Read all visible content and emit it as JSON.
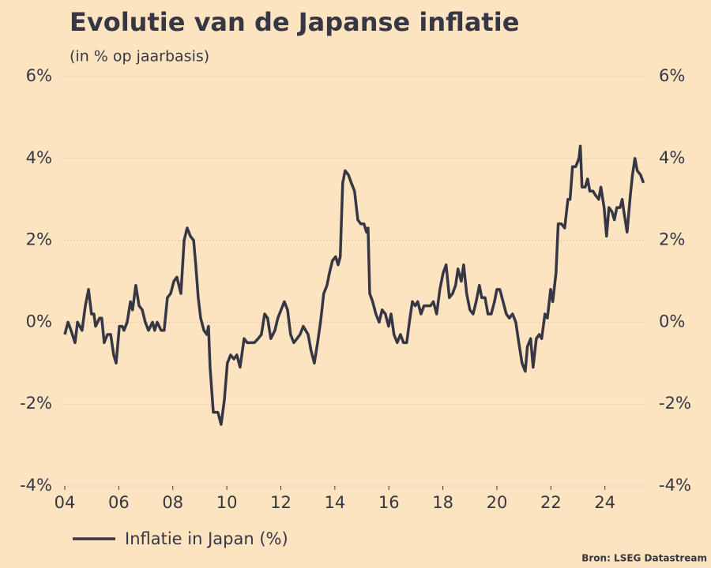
{
  "chart_data": {
    "type": "line",
    "title": "Evolutie van de Japanse inflatie",
    "subtitle": "(in % op jaarbasis)",
    "source": "Bron: LSEG Datastream",
    "xlim": [
      2004,
      2025.5
    ],
    "ylim": [
      -4,
      6
    ],
    "xticks": [
      {
        "value": 2004,
        "label": "04"
      },
      {
        "value": 2006,
        "label": "06"
      },
      {
        "value": 2008,
        "label": "08"
      },
      {
        "value": 2010,
        "label": "10"
      },
      {
        "value": 2012,
        "label": "12"
      },
      {
        "value": 2014,
        "label": "14"
      },
      {
        "value": 2016,
        "label": "16"
      },
      {
        "value": 2018,
        "label": "18"
      },
      {
        "value": 2020,
        "label": "20"
      },
      {
        "value": 2022,
        "label": "22"
      },
      {
        "value": 2024,
        "label": "24"
      }
    ],
    "yticks": [
      {
        "value": -4,
        "label": "-4%"
      },
      {
        "value": -2,
        "label": "-2%"
      },
      {
        "value": 0,
        "label": "0%"
      },
      {
        "value": 2,
        "label": "2%"
      },
      {
        "value": 4,
        "label": "4%"
      },
      {
        "value": 6,
        "label": "6%"
      }
    ],
    "grid": true,
    "legend": "bottom-left",
    "x": [
      2004.0,
      2004.12,
      2004.23,
      2004.38,
      2004.47,
      2004.64,
      2004.76,
      2004.88,
      2004.99,
      2005.08,
      2005.14,
      2005.29,
      2005.37,
      2005.46,
      2005.58,
      2005.7,
      2005.81,
      2005.9,
      2006.02,
      2006.13,
      2006.19,
      2006.31,
      2006.43,
      2006.51,
      2006.63,
      2006.75,
      2006.87,
      2006.98,
      2007.1,
      2007.25,
      2007.33,
      2007.42,
      2007.57,
      2007.68,
      2007.8,
      2007.92,
      2008.04,
      2008.15,
      2008.3,
      2008.42,
      2008.53,
      2008.65,
      2008.77,
      2008.85,
      2008.94,
      2009.03,
      2009.15,
      2009.26,
      2009.32,
      2009.38,
      2009.5,
      2009.67,
      2009.79,
      2009.91,
      2010.02,
      2010.14,
      2010.26,
      2010.37,
      2010.49,
      2010.64,
      2010.75,
      2010.87,
      2011.02,
      2011.16,
      2011.28,
      2011.4,
      2011.51,
      2011.63,
      2011.78,
      2011.89,
      2012.01,
      2012.13,
      2012.25,
      2012.36,
      2012.48,
      2012.6,
      2012.71,
      2012.83,
      2013.01,
      2013.12,
      2013.24,
      2013.36,
      2013.47,
      2013.59,
      2013.71,
      2013.8,
      2013.91,
      2014.03,
      2014.12,
      2014.2,
      2014.29,
      2014.38,
      2014.5,
      2014.61,
      2014.73,
      2014.85,
      2014.96,
      2015.08,
      2015.17,
      2015.23,
      2015.29,
      2015.4,
      2015.52,
      2015.64,
      2015.75,
      2015.87,
      2015.99,
      2016.08,
      2016.19,
      2016.31,
      2016.43,
      2016.54,
      2016.66,
      2016.78,
      2016.87,
      2016.98,
      2017.07,
      2017.19,
      2017.3,
      2017.42,
      2017.54,
      2017.65,
      2017.77,
      2017.89,
      2018.01,
      2018.12,
      2018.24,
      2018.36,
      2018.47,
      2018.56,
      2018.68,
      2018.77,
      2018.88,
      2019.0,
      2019.12,
      2019.23,
      2019.35,
      2019.44,
      2019.56,
      2019.67,
      2019.79,
      2019.91,
      2020.0,
      2020.11,
      2020.23,
      2020.35,
      2020.46,
      2020.58,
      2020.7,
      2020.81,
      2020.93,
      2021.05,
      2021.13,
      2021.25,
      2021.34,
      2021.46,
      2021.57,
      2021.66,
      2021.78,
      2021.87,
      2021.99,
      2022.07,
      2022.19,
      2022.27,
      2022.39,
      2022.51,
      2022.63,
      2022.71,
      2022.8,
      2022.92,
      2023.04,
      2023.09,
      2023.15,
      2023.27,
      2023.36,
      2023.44,
      2023.56,
      2023.65,
      2023.77,
      2023.85,
      2023.97,
      2024.06,
      2024.15,
      2024.26,
      2024.35,
      2024.44,
      2024.56,
      2024.64,
      2024.7,
      2024.82,
      2024.94,
      2025.02,
      2025.11,
      2025.2,
      2025.32,
      2025.43
    ],
    "series": [
      {
        "name": "Inflatie in Japan (%)",
        "color": "#363645",
        "values": [
          -0.3,
          0.0,
          -0.2,
          -0.5,
          0.0,
          -0.2,
          0.4,
          0.8,
          0.2,
          0.2,
          -0.1,
          0.1,
          0.1,
          -0.5,
          -0.3,
          -0.3,
          -0.8,
          -1.0,
          -0.1,
          -0.1,
          -0.2,
          0.0,
          0.5,
          0.3,
          0.9,
          0.4,
          0.3,
          0.0,
          -0.2,
          0.0,
          -0.2,
          0.0,
          -0.2,
          -0.2,
          0.6,
          0.7,
          1.0,
          1.1,
          0.7,
          2.0,
          2.3,
          2.1,
          2.0,
          1.4,
          0.6,
          0.1,
          -0.2,
          -0.3,
          -0.1,
          -1.1,
          -2.2,
          -2.2,
          -2.5,
          -1.9,
          -1.0,
          -0.8,
          -0.9,
          -0.8,
          -1.1,
          -0.4,
          -0.5,
          -0.5,
          -0.5,
          -0.4,
          -0.3,
          0.2,
          0.1,
          -0.4,
          -0.2,
          0.1,
          0.3,
          0.5,
          0.3,
          -0.3,
          -0.5,
          -0.4,
          -0.3,
          -0.1,
          -0.3,
          -0.7,
          -1.0,
          -0.5,
          0.0,
          0.7,
          0.9,
          1.2,
          1.5,
          1.6,
          1.4,
          1.6,
          3.4,
          3.7,
          3.6,
          3.4,
          3.2,
          2.5,
          2.4,
          2.4,
          2.2,
          2.3,
          0.7,
          0.5,
          0.2,
          0.0,
          0.3,
          0.2,
          -0.1,
          0.2,
          -0.3,
          -0.5,
          -0.3,
          -0.5,
          -0.5,
          0.1,
          0.5,
          0.4,
          0.5,
          0.2,
          0.4,
          0.4,
          0.4,
          0.5,
          0.2,
          0.8,
          1.2,
          1.4,
          0.6,
          0.7,
          0.9,
          1.3,
          1.0,
          1.4,
          0.7,
          0.3,
          0.2,
          0.5,
          0.9,
          0.6,
          0.6,
          0.2,
          0.2,
          0.5,
          0.8,
          0.8,
          0.5,
          0.2,
          0.1,
          0.2,
          0.0,
          -0.5,
          -1.0,
          -1.2,
          -0.6,
          -0.4,
          -1.1,
          -0.4,
          -0.3,
          -0.4,
          0.2,
          0.1,
          0.8,
          0.5,
          1.2,
          2.4,
          2.4,
          2.3,
          3.0,
          3.0,
          3.8,
          3.8,
          4.0,
          4.3,
          3.3,
          3.3,
          3.5,
          3.2,
          3.2,
          3.1,
          3.0,
          3.3,
          2.8,
          2.1,
          2.8,
          2.7,
          2.5,
          2.8,
          2.8,
          3.0,
          2.7,
          2.2,
          3.1,
          3.6,
          4.0,
          3.7,
          3.6,
          3.4
        ]
      }
    ]
  }
}
